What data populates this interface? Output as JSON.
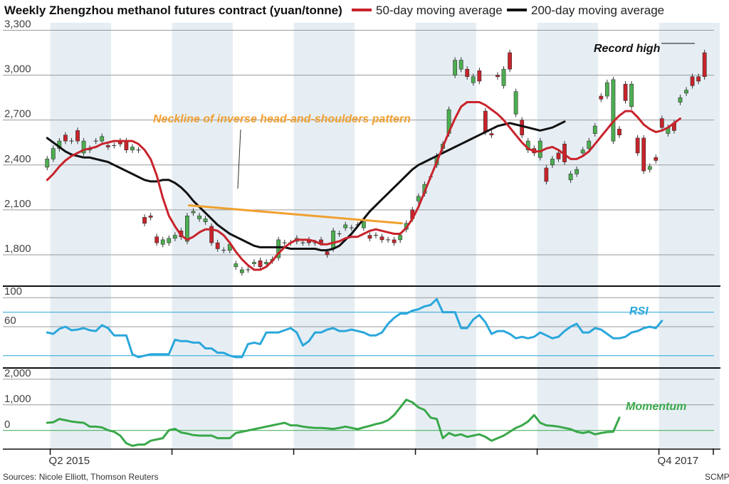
{
  "chart_data": {
    "type": "line",
    "title": "Weekly Zhengzhou methanol futures contract (yuan/tonne)",
    "legend": [
      {
        "name": "50-day moving average",
        "color": "#c8232b"
      },
      {
        "name": "200-day moving average",
        "color": "#111111"
      }
    ],
    "legend_position": "top-right",
    "colors": {
      "up": "#4caf50",
      "down": "#c8232b",
      "shade": "#e6eef4",
      "orange": "#f0a030",
      "rsi": "#2aa7dc",
      "momentum": "#3aa84a"
    },
    "x_range": [
      0,
      112
    ],
    "x_ticks": [
      {
        "x": 1,
        "label": "Q2 2015"
      },
      {
        "x": 101,
        "label": "Q4 2017"
      }
    ],
    "quarter_bands": [
      [
        1,
        11
      ],
      [
        21,
        31
      ],
      [
        41,
        51
      ],
      [
        61,
        71
      ],
      [
        81,
        91
      ],
      [
        101,
        111
      ]
    ],
    "price_panel": {
      "ylim": [
        1600,
        3350
      ],
      "yticks": [
        1800,
        2100,
        2400,
        2700,
        3000,
        3300
      ],
      "ytick_labels": [
        "1,800",
        "2,100",
        "2,400",
        "2,700",
        "3,000",
        "3,300"
      ],
      "candles": [
        [
          2385,
          2440
        ],
        [
          2440,
          2510
        ],
        [
          2510,
          2560
        ],
        [
          2600,
          2560
        ],
        [
          2560,
          2560
        ],
        [
          2630,
          2560
        ],
        [
          2480,
          2560
        ],
        [
          2500,
          2510
        ],
        [
          2560,
          2560
        ],
        [
          2560,
          2590
        ],
        [
          2530,
          2520
        ],
        [
          2530,
          2530
        ],
        [
          2560,
          2540
        ],
        [
          2560,
          2500
        ],
        [
          2500,
          2520
        ],
        [
          2500,
          2500
        ],
        [
          2050,
          2010
        ],
        [
          2060,
          2050
        ],
        [
          1920,
          1880
        ],
        [
          1870,
          1900
        ],
        [
          1880,
          1910
        ],
        [
          1910,
          1930
        ],
        [
          1960,
          1920
        ],
        [
          1890,
          2060
        ],
        [
          2080,
          2090
        ],
        [
          2040,
          2060
        ],
        [
          2020,
          2040
        ],
        [
          1990,
          1880
        ],
        [
          1880,
          1840
        ],
        [
          1830,
          1830
        ],
        [
          1830,
          1870
        ],
        [
          1720,
          1740
        ],
        [
          1680,
          1700
        ],
        [
          1700,
          1700
        ],
        [
          1740,
          1750
        ],
        [
          1760,
          1720
        ],
        [
          1740,
          1750
        ],
        [
          1760,
          1770
        ],
        [
          1780,
          1900
        ],
        [
          1880,
          1880
        ],
        [
          1880,
          1880
        ],
        [
          1890,
          1910
        ],
        [
          1880,
          1880
        ],
        [
          1900,
          1880
        ],
        [
          1880,
          1880
        ],
        [
          1900,
          1880
        ],
        [
          1820,
          1800
        ],
        [
          1840,
          1960
        ],
        [
          1940,
          1940
        ],
        [
          1980,
          2000
        ],
        [
          1980,
          1980
        ],
        [
          2000,
          2000
        ],
        [
          1980,
          2020
        ],
        [
          1930,
          1910
        ],
        [
          1930,
          1930
        ],
        [
          1920,
          1900
        ],
        [
          1900,
          1900
        ],
        [
          1900,
          1880
        ],
        [
          1900,
          1930
        ],
        [
          1970,
          2010
        ],
        [
          2100,
          2040
        ],
        [
          2160,
          2190
        ],
        [
          2210,
          2270
        ],
        [
          2320,
          2320
        ],
        [
          2400,
          2460
        ],
        [
          2510,
          2540
        ],
        [
          2610,
          2770
        ],
        [
          3000,
          3100
        ],
        [
          3040,
          3100
        ],
        [
          3040,
          2990
        ],
        [
          2950,
          2990
        ],
        [
          3030,
          2960
        ],
        [
          2760,
          2620
        ],
        [
          2610,
          2600
        ],
        [
          3000,
          2990
        ],
        [
          2930,
          3040
        ],
        [
          3150,
          3040
        ],
        [
          2740,
          2890
        ],
        [
          2700,
          2600
        ],
        [
          2500,
          2560
        ],
        [
          2510,
          2480
        ],
        [
          2450,
          2560
        ],
        [
          2380,
          2290
        ],
        [
          2400,
          2440
        ],
        [
          2480,
          2440
        ],
        [
          2540,
          2420
        ],
        [
          2300,
          2340
        ],
        [
          2340,
          2370
        ],
        [
          2480,
          2500
        ],
        [
          2510,
          2560
        ],
        [
          2610,
          2660
        ],
        [
          2860,
          2840
        ],
        [
          2860,
          2950
        ],
        [
          2560,
          2970
        ],
        [
          2640,
          2600
        ],
        [
          2940,
          2830
        ],
        [
          2790,
          2940
        ],
        [
          2580,
          2480
        ],
        [
          2580,
          2360
        ],
        [
          2370,
          2390
        ],
        [
          2450,
          2430
        ],
        [
          2710,
          2650
        ],
        [
          2610,
          2650
        ],
        [
          2680,
          2630
        ],
        [
          2820,
          2850
        ],
        [
          2880,
          2900
        ],
        [
          2990,
          2930
        ],
        [
          2990,
          2960
        ],
        [
          3150,
          2990
        ]
      ],
      "ma50": [
        2300,
        2340,
        2390,
        2430,
        2460,
        2480,
        2500,
        2510,
        2520,
        2540,
        2550,
        2560,
        2560,
        2560,
        2560,
        2540,
        2500,
        2440,
        2330,
        2180,
        2060,
        1990,
        1930,
        1900,
        1920,
        1950,
        1970,
        1970,
        1960,
        1930,
        1880,
        1820,
        1770,
        1730,
        1700,
        1700,
        1720,
        1760,
        1810,
        1850,
        1880,
        1900,
        1900,
        1900,
        1890,
        1870,
        1870,
        1880,
        1890,
        1910,
        1920,
        1920,
        1940,
        1960,
        1970,
        1960,
        1950,
        1940,
        1940,
        1980,
        2040,
        2120,
        2220,
        2320,
        2420,
        2520,
        2620,
        2710,
        2790,
        2820,
        2820,
        2820,
        2800,
        2770,
        2740,
        2700,
        2650,
        2600,
        2550,
        2510,
        2490,
        2490,
        2510,
        2520,
        2500,
        2470,
        2440,
        2440,
        2460,
        2490,
        2540,
        2590,
        2640,
        2690,
        2730,
        2760,
        2760,
        2720,
        2670,
        2640,
        2620,
        2630,
        2650,
        2680,
        2710
      ],
      "ma200": [
        2580,
        2550,
        2520,
        2490,
        2470,
        2460,
        2450,
        2450,
        2440,
        2430,
        2420,
        2400,
        2380,
        2360,
        2340,
        2320,
        2300,
        2290,
        2290,
        2300,
        2300,
        2280,
        2250,
        2210,
        2160,
        2120,
        2080,
        2040,
        2000,
        1970,
        1940,
        1920,
        1900,
        1880,
        1860,
        1850,
        1850,
        1850,
        1850,
        1850,
        1840,
        1840,
        1840,
        1840,
        1840,
        1830,
        1830,
        1840,
        1860,
        1900,
        1940,
        1990,
        2040,
        2090,
        2130,
        2170,
        2210,
        2250,
        2290,
        2330,
        2370,
        2400,
        2420,
        2440,
        2460,
        2480,
        2500,
        2520,
        2540,
        2560,
        2580,
        2600,
        2620,
        2640,
        2660,
        2670,
        2680,
        2670,
        2660,
        2650,
        2640,
        2630,
        2640,
        2650,
        2670,
        2690
      ],
      "neckline": {
        "x": [
          23.8,
          58.8
        ],
        "y": [
          2130,
          2010
        ]
      }
    },
    "rsi_panel": {
      "ylim": [
        5,
        110
      ],
      "yticks": [
        60,
        100
      ],
      "ytick_labels": [
        "60",
        "100"
      ],
      "reference_lines": [
        80,
        20
      ],
      "values": [
        52,
        50,
        57,
        60,
        55,
        56,
        58,
        55,
        54,
        62,
        58,
        48,
        48,
        48,
        22,
        18,
        20,
        22,
        22,
        22,
        22,
        42,
        40,
        40,
        38,
        38,
        30,
        30,
        24,
        24,
        20,
        18,
        18,
        36,
        38,
        36,
        52,
        52,
        52,
        55,
        58,
        52,
        34,
        40,
        52,
        52,
        56,
        58,
        54,
        54,
        56,
        54,
        52,
        48,
        48,
        52,
        64,
        72,
        78,
        78,
        82,
        84,
        88,
        90,
        98,
        80,
        80,
        80,
        58,
        58,
        70,
        76,
        66,
        50,
        54,
        54,
        50,
        44,
        46,
        44,
        46,
        52,
        48,
        44,
        46,
        54,
        60,
        64,
        52,
        52,
        58,
        56,
        50,
        44,
        44,
        46,
        52,
        54,
        58,
        60,
        58,
        68
      ]
    },
    "momentum_panel": {
      "ylim": [
        -700,
        2300
      ],
      "yticks": [
        0,
        1000,
        2000
      ],
      "ytick_labels": [
        "0",
        "1,000",
        "2,000"
      ],
      "values": [
        300,
        320,
        450,
        400,
        350,
        320,
        300,
        150,
        150,
        120,
        10,
        -50,
        -200,
        -500,
        -600,
        -550,
        -550,
        -400,
        -350,
        -300,
        10,
        60,
        -80,
        -120,
        -180,
        -200,
        -200,
        -200,
        -300,
        -300,
        -300,
        -100,
        -50,
        0,
        50,
        100,
        150,
        200,
        250,
        300,
        200,
        200,
        150,
        120,
        100,
        100,
        80,
        60,
        100,
        150,
        100,
        50,
        120,
        180,
        250,
        300,
        400,
        600,
        900,
        1200,
        1100,
        900,
        800,
        500,
        450,
        -300,
        -100,
        -200,
        -150,
        -250,
        -200,
        -150,
        -250,
        -400,
        -300,
        -200,
        -50,
        100,
        200,
        350,
        600,
        300,
        200,
        180,
        150,
        100,
        50,
        -50,
        -100,
        -50,
        -150,
        -100,
        -60,
        -50,
        500
      ]
    },
    "annotations": {
      "neckline": "Neckline of inverse head-and-shoulders pattern",
      "record_high": "Record high",
      "rsi": "RSI",
      "momentum": "Momentum"
    }
  },
  "footer": {
    "source": "Sources: Nicole Elliott, Thomson Reuters",
    "credit": "SCMP"
  }
}
